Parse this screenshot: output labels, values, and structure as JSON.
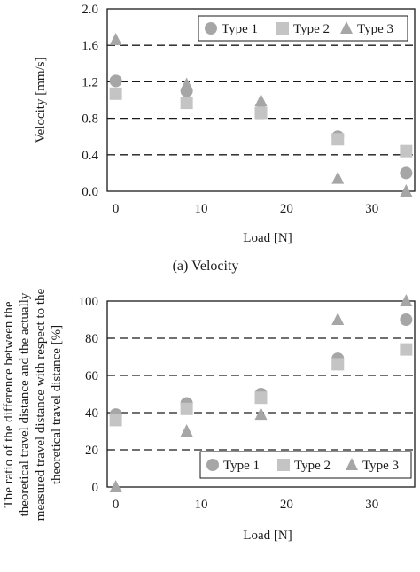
{
  "chart_data": [
    {
      "type": "scatter",
      "caption": "(a) Velocity",
      "xlabel": "Load [N]",
      "ylabel": "Velocity [mm/s]",
      "xlim": [
        -1,
        35
      ],
      "ylim": [
        0,
        2.0
      ],
      "xticks": [
        "0",
        "10",
        "20",
        "30"
      ],
      "xtick_values": [
        0,
        10,
        20,
        30
      ],
      "yticks": [
        "0.0",
        "0.4",
        "0.8",
        "1.2",
        "1.6",
        "2.0"
      ],
      "ytick_values": [
        0,
        0.4,
        0.8,
        1.2,
        1.6,
        2.0
      ],
      "grid": "horizontal dashed",
      "legend_position": "top-right",
      "series": [
        {
          "name": "Type 1",
          "marker": "circle",
          "color": "#a6a6a6",
          "x": [
            0,
            8.3,
            17,
            26,
            34
          ],
          "y": [
            1.21,
            1.1,
            0.88,
            0.6,
            0.2
          ]
        },
        {
          "name": "Type 2",
          "marker": "square",
          "color": "#c4c4c4",
          "x": [
            0,
            8.3,
            17,
            26,
            34
          ],
          "y": [
            1.07,
            0.97,
            0.86,
            0.57,
            0.44
          ]
        },
        {
          "name": "Type 3",
          "marker": "triangle",
          "color": "#a6a6a6",
          "x": [
            0,
            8.3,
            17,
            26,
            34
          ],
          "y": [
            1.66,
            1.17,
            0.99,
            0.14,
            0.0
          ]
        }
      ]
    },
    {
      "type": "scatter",
      "xlabel": "Load [N]",
      "ylabel_lines": [
        "The ratio of the difference between the",
        "theoretical travel distance and the actually",
        "measured travel distance with respect to the",
        "theoretical travel distance [%]"
      ],
      "xlim": [
        -1,
        35
      ],
      "ylim": [
        0,
        100
      ],
      "xticks": [
        "0",
        "10",
        "20",
        "30"
      ],
      "xtick_values": [
        0,
        10,
        20,
        30
      ],
      "yticks": [
        "0",
        "20",
        "40",
        "60",
        "80",
        "100"
      ],
      "ytick_values": [
        0,
        20,
        40,
        60,
        80,
        100
      ],
      "grid": "horizontal dashed",
      "legend_position": "bottom-right",
      "series": [
        {
          "name": "Type 1",
          "marker": "circle",
          "color": "#a6a6a6",
          "x": [
            0,
            8.3,
            17,
            26,
            34
          ],
          "y": [
            39,
            45,
            50,
            69,
            90
          ]
        },
        {
          "name": "Type 2",
          "marker": "square",
          "color": "#c4c4c4",
          "x": [
            0,
            8.3,
            17,
            26,
            34
          ],
          "y": [
            36,
            42,
            48,
            66,
            74
          ]
        },
        {
          "name": "Type 3",
          "marker": "triangle",
          "color": "#a6a6a6",
          "x": [
            0,
            8.3,
            17,
            26,
            34
          ],
          "y": [
            0,
            30,
            39,
            90,
            100
          ]
        }
      ]
    }
  ]
}
